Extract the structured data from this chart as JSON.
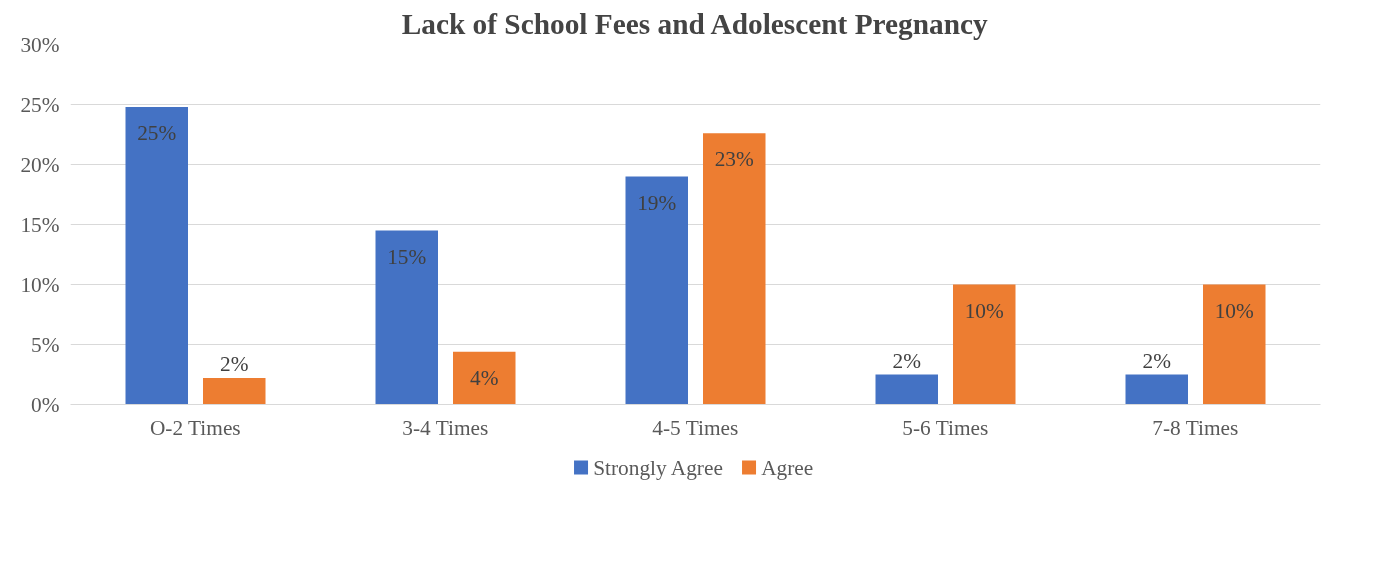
{
  "chart_data": {
    "type": "bar",
    "title": "Lack of School Fees and Adolescent Pregnancy",
    "categories": [
      "O-2 Times",
      "3-4 Times",
      "4-5 Times",
      "5-6 Times",
      "7-8 Times"
    ],
    "series": [
      {
        "name": "Strongly Agree",
        "color": "#4472c4",
        "values": [
          24.8,
          14.5,
          19,
          2.5,
          2.5
        ],
        "value_labels": [
          "25%",
          "15%",
          "19%",
          "2%",
          "2%"
        ]
      },
      {
        "name": "Agree",
        "color": "#ed7d31",
        "values": [
          2.2,
          4.4,
          22.6,
          10,
          10
        ],
        "value_labels": [
          "2%",
          "4%",
          "23%",
          "10%",
          "10%"
        ]
      }
    ],
    "ylim": [
      0,
      30
    ],
    "yticks": [
      {
        "value": 0,
        "label": "0%"
      },
      {
        "value": 5,
        "label": "5%"
      },
      {
        "value": 10,
        "label": "10%"
      },
      {
        "value": 15,
        "label": "15%"
      },
      {
        "value": 20,
        "label": "20%"
      },
      {
        "value": 25,
        "label": "25%"
      },
      {
        "value": 30,
        "label": "30%"
      }
    ],
    "grid": "y",
    "legend": "bottom"
  }
}
